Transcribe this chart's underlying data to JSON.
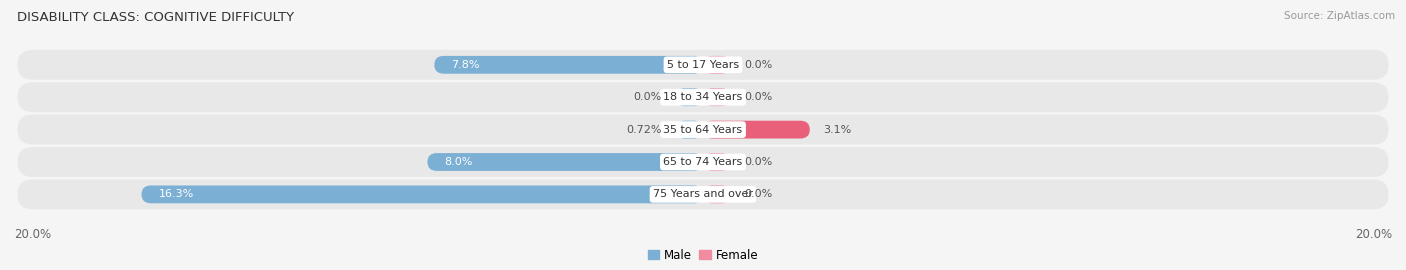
{
  "title": "DISABILITY CLASS: COGNITIVE DIFFICULTY",
  "source": "Source: ZipAtlas.com",
  "categories": [
    "5 to 17 Years",
    "18 to 34 Years",
    "35 to 64 Years",
    "65 to 74 Years",
    "75 Years and over"
  ],
  "male_values": [
    7.8,
    0.0,
    0.72,
    8.0,
    16.3
  ],
  "female_values": [
    0.0,
    0.0,
    3.1,
    0.0,
    0.0
  ],
  "male_label_values": [
    "7.8%",
    "0.0%",
    "0.72%",
    "8.0%",
    "16.3%"
  ],
  "female_label_values": [
    "0.0%",
    "0.0%",
    "3.1%",
    "0.0%",
    "0.0%"
  ],
  "male_color": "#7bafd4",
  "female_color": "#f08ca0",
  "female_color_bright": "#e8607a",
  "row_bg_color": "#e8e8e8",
  "row_gap_color": "#f5f5f5",
  "axis_max": 20.0,
  "title_fontsize": 9.5,
  "label_fontsize": 8.0,
  "tick_fontsize": 8.5,
  "source_fontsize": 7.5,
  "bar_height": 0.55,
  "min_bar_display": 0.8,
  "legend_male_label": "Male",
  "legend_female_label": "Female"
}
